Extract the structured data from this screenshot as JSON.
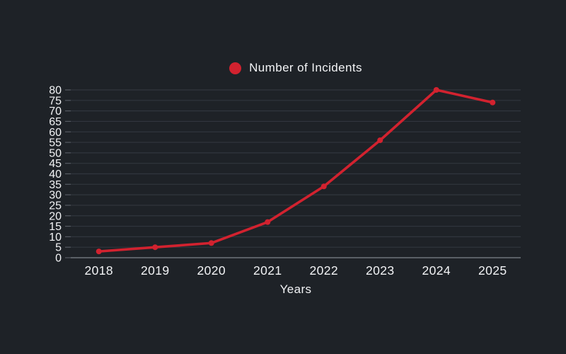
{
  "window": {
    "background": "#1e2227"
  },
  "chart_data": {
    "type": "line",
    "title": "",
    "categories": [
      "2018",
      "2019",
      "2020",
      "2021",
      "2022",
      "2023",
      "2024",
      "2025"
    ],
    "series": [
      {
        "name": "Number of Incidents",
        "values": [
          3,
          5,
          7,
          17,
          34,
          56,
          80,
          74
        ]
      }
    ],
    "xlabel": "Years",
    "ylabel": "",
    "ylim": [
      0,
      80
    ],
    "ytick_step": 5,
    "grid": true,
    "legend_position": "top-center",
    "colors": {
      "line": "#d2222f",
      "marker": "#d2222f",
      "background": "#1e2227",
      "gridline": "#31363e",
      "axis_line": "#6f747c",
      "tick_mark": "#565b63",
      "text": "#f2f3f5"
    }
  }
}
